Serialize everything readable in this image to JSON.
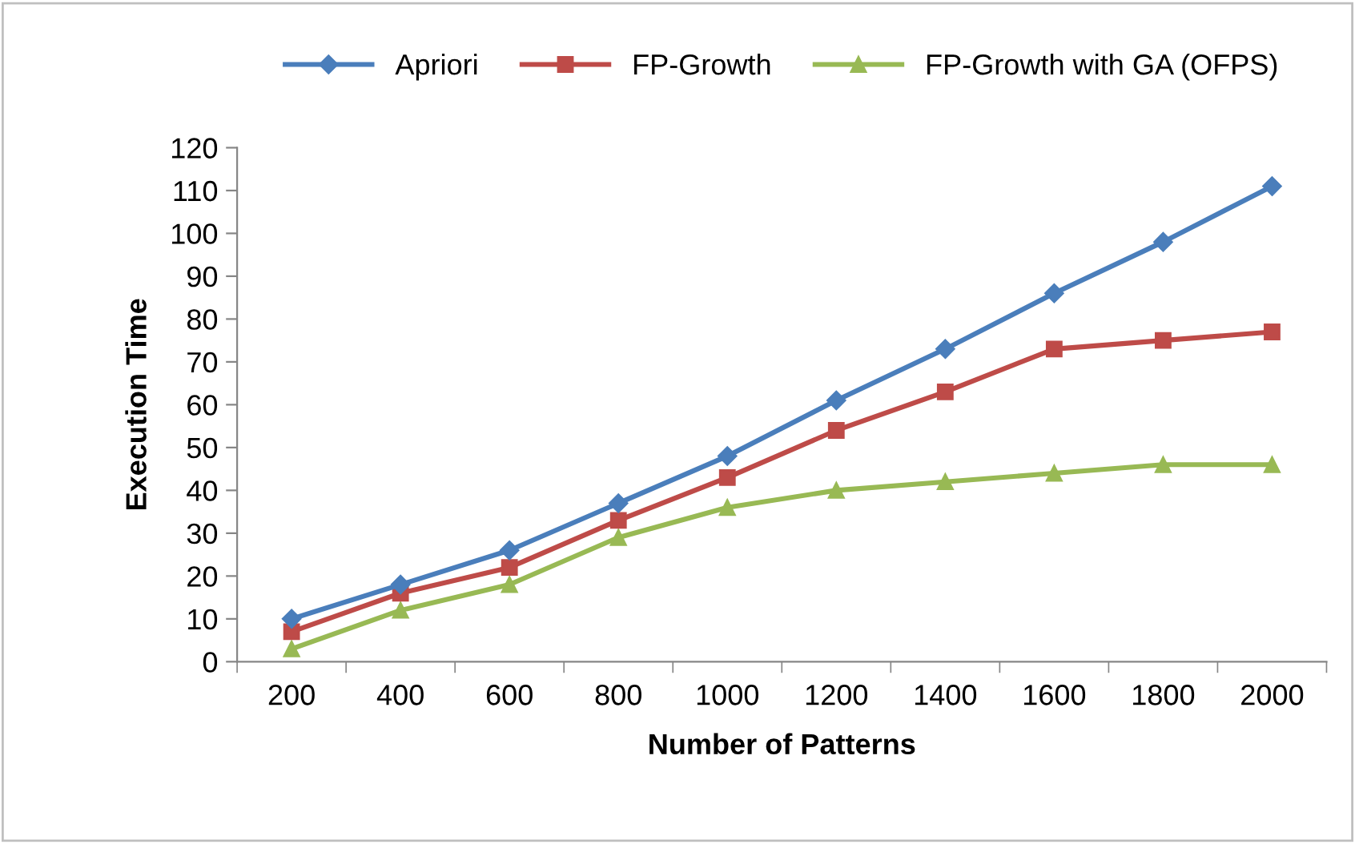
{
  "chart_data": {
    "type": "line",
    "xlabel": "Number of Patterns",
    "ylabel": "Execution Time",
    "categories": [
      "200",
      "400",
      "600",
      "800",
      "1000",
      "1200",
      "1400",
      "1600",
      "1800",
      "2000"
    ],
    "series": [
      {
        "name": "Apriori",
        "color": "#4a7ebb",
        "marker": "diamond",
        "values": [
          10,
          18,
          26,
          37,
          48,
          61,
          73,
          86,
          98,
          111
        ]
      },
      {
        "name": "FP-Growth",
        "color": "#be4b48",
        "marker": "square",
        "values": [
          7,
          16,
          22,
          33,
          43,
          54,
          63,
          73,
          75,
          77
        ]
      },
      {
        "name": "FP-Growth with GA (OFPS)",
        "color": "#98b954",
        "marker": "triangle",
        "values": [
          3,
          12,
          18,
          29,
          36,
          40,
          42,
          44,
          46,
          46
        ]
      }
    ],
    "ylim": [
      0,
      120
    ],
    "yticks": [
      0,
      10,
      20,
      30,
      40,
      50,
      60,
      70,
      80,
      90,
      100,
      110,
      120
    ],
    "grid": false,
    "legend": "top",
    "line_style": "solid"
  }
}
